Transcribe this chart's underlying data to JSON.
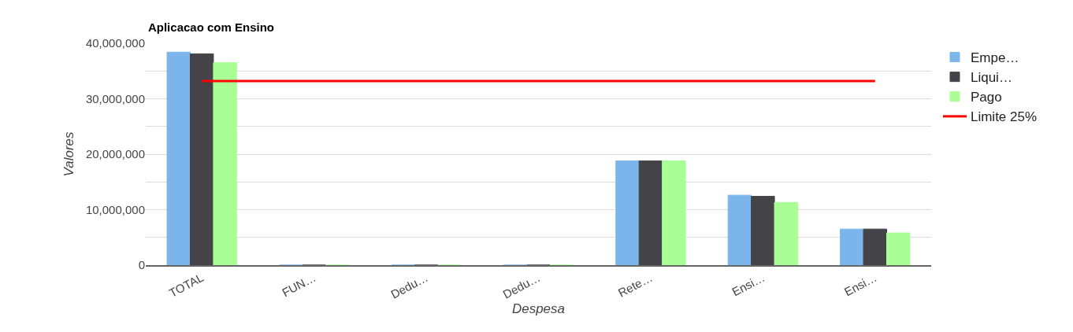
{
  "chart_data": {
    "type": "bar",
    "title": "Aplicacao com Ensino",
    "xlabel": "Despesa",
    "ylabel": "Valores",
    "categories": [
      "TOTAL",
      "FUN…",
      "Dedu…",
      "Dedu…",
      "Rete…",
      "Ensi…",
      "Ensi…"
    ],
    "series": [
      {
        "name": "Empe…",
        "color": "#7cb5ec",
        "values": [
          38400000,
          0,
          0,
          0,
          18800000,
          12600000,
          6500000
        ]
      },
      {
        "name": "Liqui…",
        "color": "#434348",
        "values": [
          38100000,
          0,
          0,
          0,
          18800000,
          12400000,
          6500000
        ]
      },
      {
        "name": "Pago",
        "color": "#a9ff96",
        "values": [
          36500000,
          0,
          0,
          0,
          18800000,
          11300000,
          5800000
        ]
      },
      {
        "name": "Limite 25%",
        "type": "line",
        "color": "#ff0000",
        "marker": "none",
        "values": [
          33200000,
          33200000,
          33200000,
          33200000,
          33200000,
          33200000,
          33200000
        ]
      }
    ],
    "ylim": [
      0,
      40000000
    ],
    "yticks": [
      0,
      {
        "value": 5000000,
        "label": null
      },
      {
        "value": 10000000,
        "label": "10,000,000"
      },
      {
        "value": 15000000,
        "label": null
      },
      {
        "value": 20000000,
        "label": "20,000,000"
      },
      {
        "value": 25000000,
        "label": null
      },
      {
        "value": 30000000,
        "label": "30,000,000"
      },
      {
        "value": 35000000,
        "label": null
      },
      {
        "value": 40000000,
        "label": "40,000,000"
      }
    ],
    "grid": "y",
    "legend": "right"
  }
}
